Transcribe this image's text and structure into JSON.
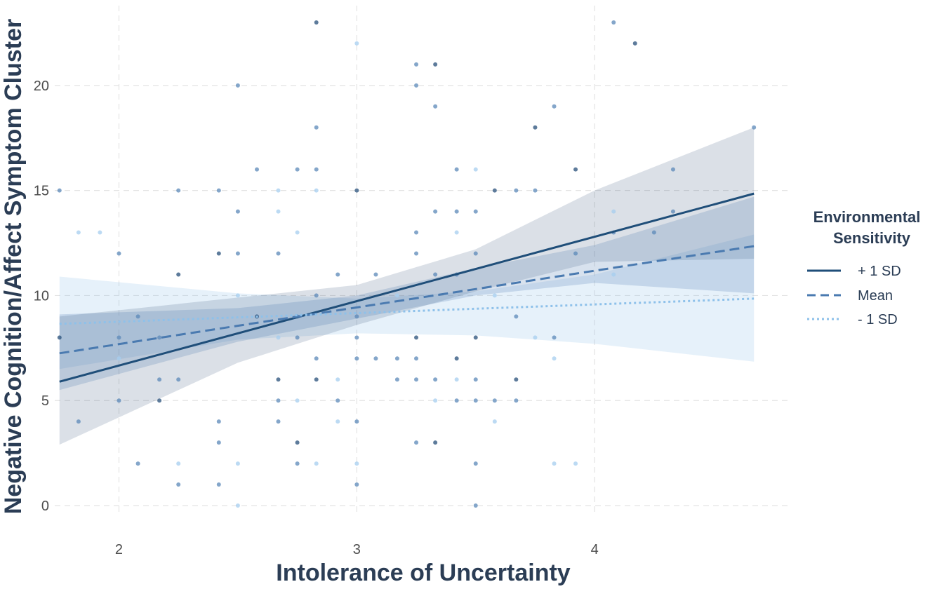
{
  "chart_data": {
    "type": "scatter",
    "xlabel": "Intolerance of Uncertainty",
    "ylabel": "Negative Cognition/Affect Symptom Cluster",
    "xlim": [
      1.73,
      4.82
    ],
    "ylim": [
      -0.4,
      23.8
    ],
    "x_ticks": [
      2,
      3,
      4
    ],
    "y_ticks": [
      0,
      5,
      10,
      15,
      20
    ],
    "grid": true,
    "legend": {
      "title_line1": "Environmental",
      "title_line2": "Sensitivity",
      "position": "right",
      "entries": [
        "+ 1 SD",
        "Mean",
        "- 1 SD"
      ]
    },
    "colors": {
      "plus": "#1f4e79",
      "mean": "#4a7ab0",
      "minus": "#8ec1ea"
    },
    "lines": [
      {
        "name": "+ 1 SD",
        "style": "solid",
        "x": [
          1.75,
          4.67
        ],
        "y": [
          5.9,
          14.85
        ],
        "ci_x": [
          1.75,
          2.5,
          3.0,
          3.5,
          4.0,
          4.67
        ],
        "ci_lower": [
          2.9,
          6.8,
          8.6,
          10.2,
          11.6,
          11.75
        ],
        "ci_upper": [
          9.0,
          9.9,
          10.5,
          12.2,
          15.0,
          18.0
        ]
      },
      {
        "name": "Mean",
        "style": "dashed",
        "x": [
          1.75,
          4.67
        ],
        "y": [
          7.25,
          12.35
        ],
        "ci_x": [
          1.75,
          2.5,
          3.0,
          3.5,
          4.0,
          4.67
        ],
        "ci_lower": [
          5.5,
          7.8,
          8.9,
          10.0,
          10.6,
          10.1
        ],
        "ci_upper": [
          9.1,
          9.4,
          10.0,
          11.3,
          12.4,
          14.7
        ]
      },
      {
        "name": "- 1 SD",
        "style": "dotted",
        "x": [
          1.75,
          4.67
        ],
        "y": [
          8.65,
          9.85
        ],
        "ci_x": [
          1.75,
          2.5,
          3.0,
          3.5,
          4.0,
          4.67
        ],
        "ci_lower": [
          6.5,
          7.9,
          8.2,
          8.1,
          7.7,
          6.85
        ],
        "ci_upper": [
          10.9,
          10.1,
          9.85,
          10.2,
          11.0,
          12.9
        ]
      }
    ],
    "points": [
      {
        "x": 1.75,
        "y": 15,
        "g": 1
      },
      {
        "x": 1.75,
        "y": 8,
        "g": 0
      },
      {
        "x": 1.83,
        "y": 13,
        "g": 2
      },
      {
        "x": 1.92,
        "y": 13,
        "g": 2
      },
      {
        "x": 1.83,
        "y": 4,
        "g": 1
      },
      {
        "x": 2.0,
        "y": 12,
        "g": 1
      },
      {
        "x": 2.0,
        "y": 8,
        "g": 1
      },
      {
        "x": 2.0,
        "y": 7,
        "g": 2
      },
      {
        "x": 2.0,
        "y": 5,
        "g": 1
      },
      {
        "x": 2.08,
        "y": 2,
        "g": 1
      },
      {
        "x": 2.08,
        "y": 9,
        "g": 1
      },
      {
        "x": 2.17,
        "y": 6,
        "g": 1
      },
      {
        "x": 2.17,
        "y": 5,
        "g": 0
      },
      {
        "x": 2.17,
        "y": 8,
        "g": 1
      },
      {
        "x": 2.25,
        "y": 15,
        "g": 1
      },
      {
        "x": 2.25,
        "y": 11,
        "g": 0
      },
      {
        "x": 2.25,
        "y": 6,
        "g": 1
      },
      {
        "x": 2.25,
        "y": 2,
        "g": 2
      },
      {
        "x": 2.25,
        "y": 1,
        "g": 1
      },
      {
        "x": 2.42,
        "y": 15,
        "g": 1
      },
      {
        "x": 2.42,
        "y": 12,
        "g": 0
      },
      {
        "x": 2.42,
        "y": 4,
        "g": 1
      },
      {
        "x": 2.42,
        "y": 3,
        "g": 1
      },
      {
        "x": 2.42,
        "y": 1,
        "g": 1
      },
      {
        "x": 2.5,
        "y": 20,
        "g": 1
      },
      {
        "x": 2.5,
        "y": 14,
        "g": 1
      },
      {
        "x": 2.5,
        "y": 12,
        "g": 1
      },
      {
        "x": 2.5,
        "y": 10,
        "g": 2
      },
      {
        "x": 2.5,
        "y": 2,
        "g": 2
      },
      {
        "x": 2.5,
        "y": 0,
        "g": 2
      },
      {
        "x": 2.58,
        "y": 16,
        "g": 1
      },
      {
        "x": 2.58,
        "y": 9,
        "g": 0
      },
      {
        "x": 2.67,
        "y": 15,
        "g": 2
      },
      {
        "x": 2.67,
        "y": 14,
        "g": 2
      },
      {
        "x": 2.67,
        "y": 12,
        "g": 1
      },
      {
        "x": 2.67,
        "y": 8,
        "g": 2
      },
      {
        "x": 2.67,
        "y": 6,
        "g": 0
      },
      {
        "x": 2.67,
        "y": 5,
        "g": 1
      },
      {
        "x": 2.67,
        "y": 4,
        "g": 1
      },
      {
        "x": 2.75,
        "y": 16,
        "g": 1
      },
      {
        "x": 2.75,
        "y": 13,
        "g": 2
      },
      {
        "x": 2.75,
        "y": 9,
        "g": 1
      },
      {
        "x": 2.75,
        "y": 8,
        "g": 1
      },
      {
        "x": 2.75,
        "y": 5,
        "g": 2
      },
      {
        "x": 2.75,
        "y": 3,
        "g": 0
      },
      {
        "x": 2.75,
        "y": 2,
        "g": 1
      },
      {
        "x": 2.83,
        "y": 23,
        "g": 0
      },
      {
        "x": 2.83,
        "y": 18,
        "g": 1
      },
      {
        "x": 2.83,
        "y": 16,
        "g": 1
      },
      {
        "x": 2.83,
        "y": 15,
        "g": 2
      },
      {
        "x": 2.83,
        "y": 10,
        "g": 1
      },
      {
        "x": 2.83,
        "y": 7,
        "g": 1
      },
      {
        "x": 2.83,
        "y": 6,
        "g": 0
      },
      {
        "x": 2.83,
        "y": 2,
        "g": 2
      },
      {
        "x": 2.92,
        "y": 11,
        "g": 1
      },
      {
        "x": 2.92,
        "y": 6,
        "g": 2
      },
      {
        "x": 2.92,
        "y": 5,
        "g": 1
      },
      {
        "x": 2.92,
        "y": 4,
        "g": 2
      },
      {
        "x": 3.0,
        "y": 22,
        "g": 2
      },
      {
        "x": 3.0,
        "y": 15,
        "g": 0
      },
      {
        "x": 3.0,
        "y": 9,
        "g": 1
      },
      {
        "x": 3.0,
        "y": 8,
        "g": 1
      },
      {
        "x": 3.0,
        "y": 7,
        "g": 1
      },
      {
        "x": 3.0,
        "y": 4,
        "g": 1
      },
      {
        "x": 3.0,
        "y": 2,
        "g": 2
      },
      {
        "x": 3.0,
        "y": 1,
        "g": 1
      },
      {
        "x": 3.08,
        "y": 11,
        "g": 1
      },
      {
        "x": 3.08,
        "y": 7,
        "g": 1
      },
      {
        "x": 3.17,
        "y": 10,
        "g": 2
      },
      {
        "x": 3.17,
        "y": 7,
        "g": 1
      },
      {
        "x": 3.17,
        "y": 6,
        "g": 1
      },
      {
        "x": 3.25,
        "y": 21,
        "g": 1
      },
      {
        "x": 3.25,
        "y": 20,
        "g": 1
      },
      {
        "x": 3.25,
        "y": 13,
        "g": 1
      },
      {
        "x": 3.25,
        "y": 12,
        "g": 1
      },
      {
        "x": 3.25,
        "y": 8,
        "g": 0
      },
      {
        "x": 3.25,
        "y": 7,
        "g": 1
      },
      {
        "x": 3.25,
        "y": 6,
        "g": 1
      },
      {
        "x": 3.25,
        "y": 3,
        "g": 1
      },
      {
        "x": 3.33,
        "y": 21,
        "g": 0
      },
      {
        "x": 3.33,
        "y": 19,
        "g": 1
      },
      {
        "x": 3.33,
        "y": 14,
        "g": 1
      },
      {
        "x": 3.33,
        "y": 11,
        "g": 1
      },
      {
        "x": 3.33,
        "y": 6,
        "g": 1
      },
      {
        "x": 3.33,
        "y": 5,
        "g": 2
      },
      {
        "x": 3.33,
        "y": 3,
        "g": 0
      },
      {
        "x": 3.42,
        "y": 16,
        "g": 1
      },
      {
        "x": 3.42,
        "y": 14,
        "g": 1
      },
      {
        "x": 3.42,
        "y": 13,
        "g": 2
      },
      {
        "x": 3.42,
        "y": 11,
        "g": 1
      },
      {
        "x": 3.42,
        "y": 7,
        "g": 0
      },
      {
        "x": 3.42,
        "y": 6,
        "g": 2
      },
      {
        "x": 3.42,
        "y": 5,
        "g": 1
      },
      {
        "x": 3.5,
        "y": 16,
        "g": 2
      },
      {
        "x": 3.5,
        "y": 14,
        "g": 1
      },
      {
        "x": 3.5,
        "y": 12,
        "g": 1
      },
      {
        "x": 3.5,
        "y": 8,
        "g": 0
      },
      {
        "x": 3.5,
        "y": 6,
        "g": 1
      },
      {
        "x": 3.5,
        "y": 5,
        "g": 1
      },
      {
        "x": 3.5,
        "y": 2,
        "g": 1
      },
      {
        "x": 3.5,
        "y": 0,
        "g": 1
      },
      {
        "x": 3.58,
        "y": 15,
        "g": 0
      },
      {
        "x": 3.58,
        "y": 10,
        "g": 2
      },
      {
        "x": 3.58,
        "y": 5,
        "g": 1
      },
      {
        "x": 3.58,
        "y": 4,
        "g": 2
      },
      {
        "x": 3.67,
        "y": 15,
        "g": 1
      },
      {
        "x": 3.67,
        "y": 9,
        "g": 1
      },
      {
        "x": 3.67,
        "y": 6,
        "g": 0
      },
      {
        "x": 3.67,
        "y": 5,
        "g": 1
      },
      {
        "x": 3.75,
        "y": 18,
        "g": 0
      },
      {
        "x": 3.75,
        "y": 15,
        "g": 1
      },
      {
        "x": 3.75,
        "y": 8,
        "g": 2
      },
      {
        "x": 3.83,
        "y": 19,
        "g": 1
      },
      {
        "x": 3.83,
        "y": 8,
        "g": 1
      },
      {
        "x": 3.83,
        "y": 7,
        "g": 2
      },
      {
        "x": 3.83,
        "y": 2,
        "g": 2
      },
      {
        "x": 3.92,
        "y": 16,
        "g": 0
      },
      {
        "x": 3.92,
        "y": 12,
        "g": 1
      },
      {
        "x": 3.92,
        "y": 2,
        "g": 2
      },
      {
        "x": 4.08,
        "y": 23,
        "g": 1
      },
      {
        "x": 4.08,
        "y": 14,
        "g": 2
      },
      {
        "x": 4.08,
        "y": 13,
        "g": 1
      },
      {
        "x": 4.08,
        "y": 11,
        "g": 2
      },
      {
        "x": 4.17,
        "y": 22,
        "g": 0
      },
      {
        "x": 4.25,
        "y": 13,
        "g": 1
      },
      {
        "x": 4.33,
        "y": 16,
        "g": 1
      },
      {
        "x": 4.33,
        "y": 14,
        "g": 1
      },
      {
        "x": 4.67,
        "y": 18,
        "g": 1
      }
    ]
  }
}
